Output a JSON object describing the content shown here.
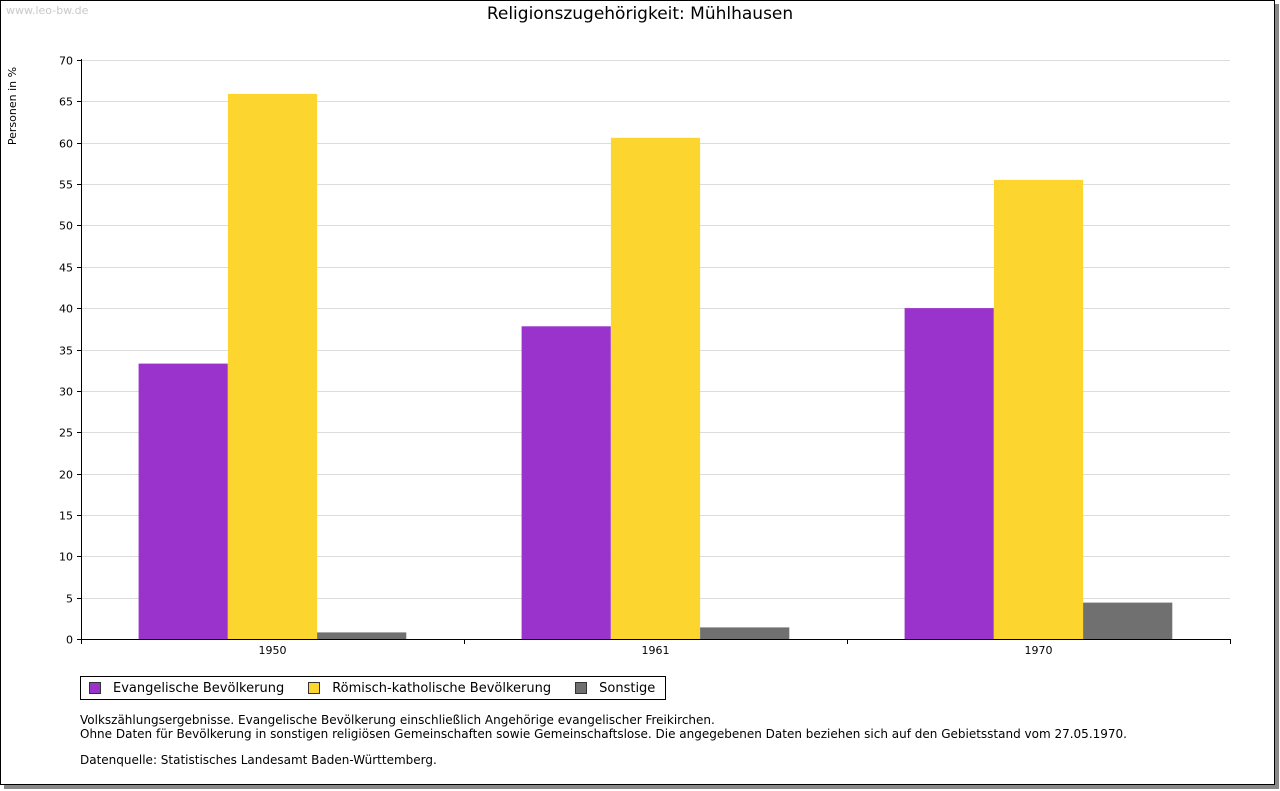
{
  "watermark": "www.leo-bw.de",
  "colors": {
    "evangelisch": "#9933cc",
    "katholisch": "#fdd52f",
    "sonstige": "#707070"
  },
  "notes": {
    "line1": "Volkszählungsergebnisse. Evangelische Bevölkerung einschließlich Angehörige evangelischer Freikirchen.",
    "line2": "Ohne Daten für Bevölkerung in sonstigen religiösen Gemeinschaften sowie Gemeinschaftslose. Die angegebenen Daten beziehen sich auf den Gebietsstand vom 27.05.1970.",
    "source": "Datenquelle: Statistisches Landesamt Baden-Württemberg."
  },
  "chart_data": {
    "type": "bar",
    "title": "Religionszugehörigkeit: Mühlhausen",
    "xlabel": "",
    "ylabel": "Personen in %",
    "ylim": [
      0,
      70
    ],
    "yticks": [
      0,
      5,
      10,
      15,
      20,
      25,
      30,
      35,
      40,
      45,
      50,
      55,
      60,
      65,
      70
    ],
    "grid": true,
    "legend_position": "bottom",
    "categories": [
      "1950",
      "1961",
      "1970"
    ],
    "series": [
      {
        "name": "Evangelische Bevölkerung",
        "values": [
          33.3,
          37.8,
          40.0
        ]
      },
      {
        "name": "Römisch-katholische Bevölkerung",
        "values": [
          65.9,
          60.6,
          55.5
        ]
      },
      {
        "name": "Sonstige",
        "values": [
          0.8,
          1.4,
          4.4
        ]
      }
    ]
  }
}
